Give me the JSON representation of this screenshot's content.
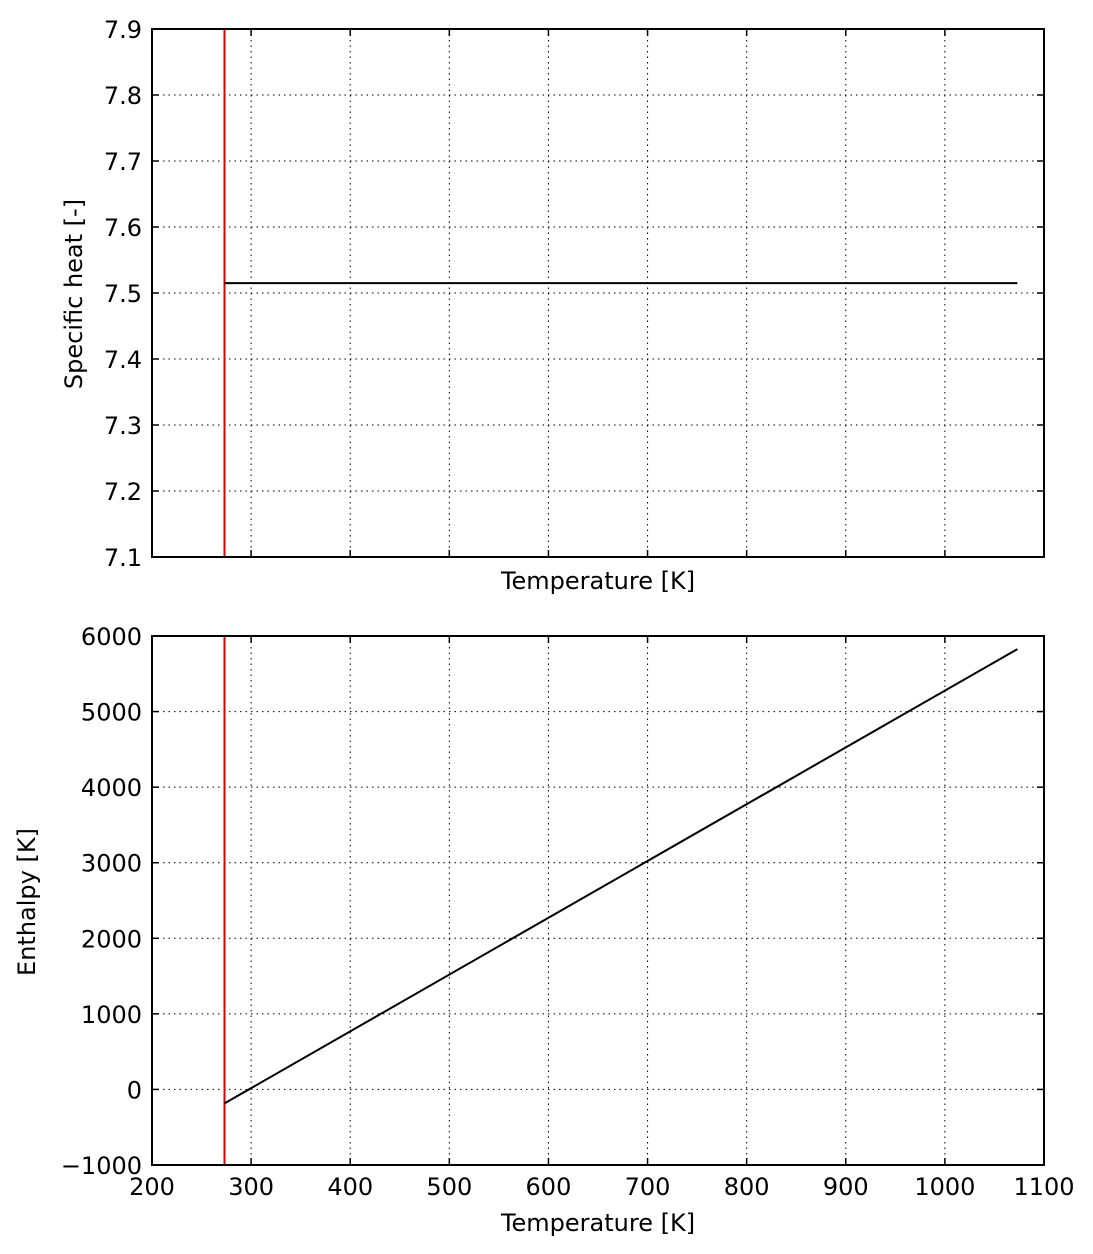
{
  "chart_data": [
    {
      "type": "line",
      "title": "",
      "xlabel": "Temperature [K]",
      "ylabel": "Specific heat [-]",
      "xlim": [
        200,
        1100
      ],
      "ylim": [
        7.1,
        7.9
      ],
      "xticks": [
        300,
        400,
        500,
        600,
        700,
        800,
        900,
        1000
      ],
      "xtick_labels_shown": false,
      "yticks": [
        7.1,
        7.2,
        7.3,
        7.4,
        7.5,
        7.6,
        7.7,
        7.8,
        7.9
      ],
      "ytick_labels": [
        "7.1",
        "7.2",
        "7.3",
        "7.4",
        "7.5",
        "7.6",
        "7.7",
        "7.8",
        "7.9"
      ],
      "grid": true,
      "series": [
        {
          "x": [
            273.15,
            1073.15
          ],
          "y": [
            7.515,
            7.515
          ],
          "color": "#000000"
        }
      ],
      "vlines": [
        {
          "x": 273.15,
          "color": "#dd0000"
        }
      ]
    },
    {
      "type": "line",
      "title": "",
      "xlabel": "Temperature [K]",
      "ylabel": "Enthalpy [K]",
      "xlim": [
        200,
        1100
      ],
      "ylim": [
        -1000,
        6000
      ],
      "xticks": [
        200,
        300,
        400,
        500,
        600,
        700,
        800,
        900,
        1000,
        1100
      ],
      "xtick_labels": [
        "200",
        "300",
        "400",
        "500",
        "600",
        "700",
        "800",
        "900",
        "1000",
        "1100"
      ],
      "xtick_labels_shown": true,
      "yticks": [
        -1000,
        0,
        1000,
        2000,
        3000,
        4000,
        5000,
        6000
      ],
      "ytick_labels": [
        "−1000",
        "0",
        "1000",
        "2000",
        "3000",
        "4000",
        "5000",
        "6000"
      ],
      "grid": true,
      "series": [
        {
          "x": [
            273.15,
            1073.15
          ],
          "y": [
            -185,
            5827
          ],
          "color": "#000000"
        }
      ],
      "vlines": [
        {
          "x": 273.15,
          "color": "#dd0000"
        }
      ]
    }
  ]
}
